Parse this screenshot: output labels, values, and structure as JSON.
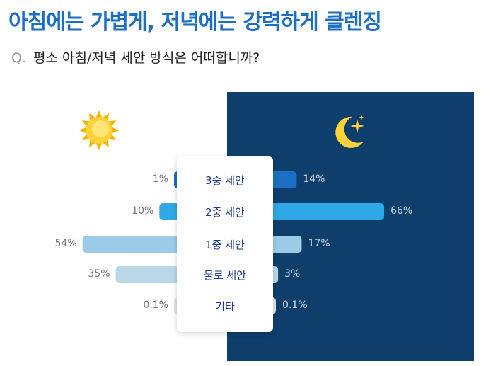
{
  "header": {
    "title": "아침에는 가볍게, 저녁에는 강력하게 클렌징",
    "question_prefix": "Q.",
    "question": "평소 아침/저녁  세안 방식은 어떠합니까?"
  },
  "chart_data": {
    "type": "bar",
    "orientation": "horizontal-diverging",
    "categories": [
      "3중 세안",
      "2중 세안",
      "1중 세안",
      "물로 세안",
      "기타"
    ],
    "series": [
      {
        "values": [
          1,
          10,
          54,
          35,
          0.1
        ],
        "labels": [
          "1%",
          "10%",
          "54%",
          "35%",
          "0.1%"
        ]
      },
      {
        "values": [
          14,
          66,
          17,
          3,
          0.1
        ],
        "labels": [
          "14%",
          "66%",
          "17%",
          "3%",
          "0.1%"
        ]
      }
    ],
    "left_icon": "sun-icon",
    "right_icon": "moon-icon",
    "colors": [
      "#1b6fc4",
      "#2ea8e6",
      "#9ccbe6",
      "#b9d7e6",
      "#e6e6e6"
    ],
    "night_background": "#0e3e6b"
  }
}
